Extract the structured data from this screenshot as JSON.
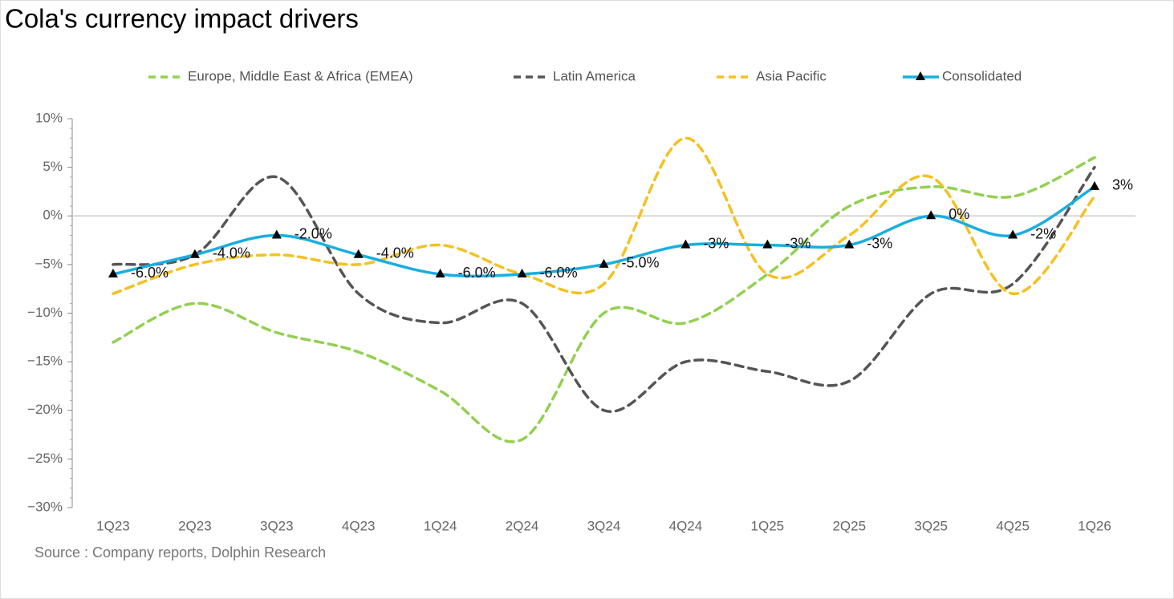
{
  "chart_data": {
    "type": "line",
    "title": "Cola's currency impact drivers",
    "source": "Source : Company reports, Dolphin Research",
    "categories": [
      "1Q23",
      "2Q23",
      "3Q23",
      "4Q23",
      "1Q24",
      "2Q24",
      "3Q24",
      "4Q24",
      "1Q25",
      "2Q25",
      "3Q25",
      "4Q25",
      "1Q26"
    ],
    "series": [
      {
        "name": "Europe, Middle East & Africa (EMEA)",
        "color": "#92d050",
        "dashed": true,
        "values": [
          -13,
          -9,
          -12,
          -14,
          -18,
          -23,
          -10,
          -11,
          -6,
          1,
          3,
          2,
          6
        ]
      },
      {
        "name": "Latin America",
        "color": "#555555",
        "dashed": true,
        "values": [
          -5,
          -4,
          4,
          -8,
          -11,
          -9,
          -20,
          -15,
          -16,
          -17,
          -8,
          -7,
          5
        ]
      },
      {
        "name": "Asia Pacific",
        "color": "#f5c021",
        "dashed": true,
        "values": [
          -8,
          -5,
          -4,
          -5,
          -3,
          -6,
          -7,
          8,
          -6,
          -2,
          4,
          -8,
          2
        ]
      },
      {
        "name": "Consolidated",
        "color": "#1aaee0",
        "dashed": false,
        "marker": "triangle",
        "values": [
          -6,
          -4,
          -2,
          -4,
          -6,
          -6,
          -5,
          -3,
          -3,
          -3,
          0,
          -2,
          3
        ],
        "value_labels": [
          "-6.0%",
          "-4.0%",
          "-2.0%",
          "-4.0%",
          "-6.0%",
          "-6.0%",
          "-5.0%",
          "-3%",
          "-3%",
          "-3%",
          "0%",
          "-2%",
          "3%"
        ]
      }
    ],
    "ylim": [
      -30,
      10
    ],
    "yticks": [
      {
        "value": -30,
        "label": "−30%"
      },
      {
        "value": -25,
        "label": "−25%"
      },
      {
        "value": -20,
        "label": "−20%"
      },
      {
        "value": -15,
        "label": "−15%"
      },
      {
        "value": -10,
        "label": "−10%"
      },
      {
        "value": -5,
        "label": "−5%"
      },
      {
        "value": 0,
        "label": "0%"
      },
      {
        "value": 5,
        "label": "5%"
      },
      {
        "value": 10,
        "label": "10%"
      }
    ],
    "smooth": true,
    "legend": "top"
  }
}
